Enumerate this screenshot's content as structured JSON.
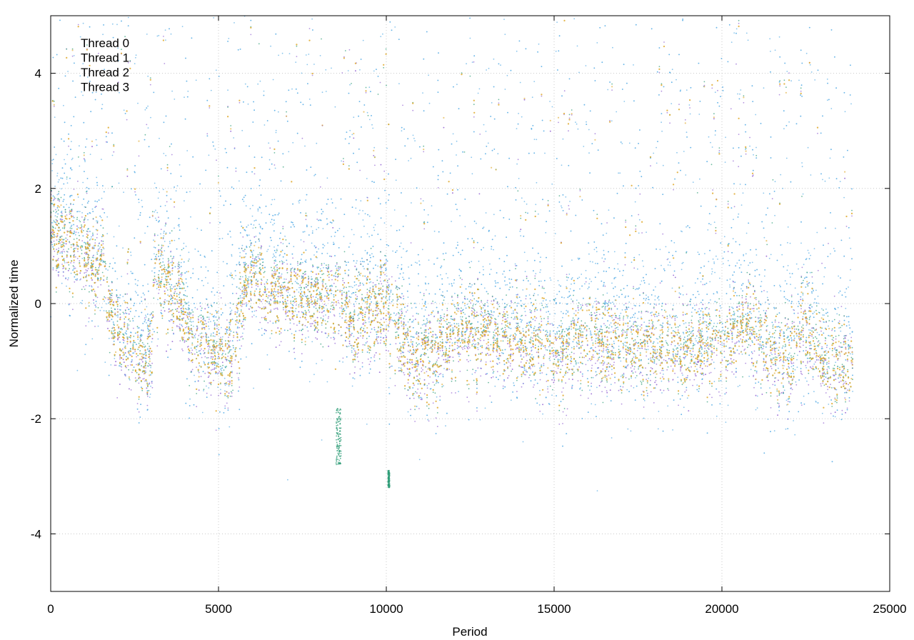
{
  "chart_data": {
    "type": "scatter",
    "title": "",
    "xlabel": "Period",
    "ylabel": "Normalized time",
    "xlim": [
      0,
      25000
    ],
    "ylim": [
      -5,
      5
    ],
    "xticks": [
      0,
      5000,
      10000,
      15000,
      20000,
      25000
    ],
    "yticks": [
      -4,
      -2,
      0,
      2,
      4
    ],
    "xtick_labels": [
      "0",
      "5000",
      "10000",
      "15000",
      "20000",
      "25000"
    ],
    "ytick_labels": [
      "-4",
      "-2",
      "0",
      "2",
      "4"
    ],
    "grid": true,
    "legend_position": "top-left",
    "series": [
      {
        "name": "Thread 0",
        "color": "#9b6fd6"
      },
      {
        "name": "Thread 1",
        "color": "#2f9e78"
      },
      {
        "name": "Thread 2",
        "color": "#5aaee6"
      },
      {
        "name": "Thread 3",
        "color": "#e0a92a"
      }
    ],
    "n_periods": 23900,
    "trend": [
      [
        0,
        1.3
      ],
      [
        1000,
        0.9
      ],
      [
        1600,
        0.6
      ],
      [
        1800,
        -0.3
      ],
      [
        2500,
        -0.8
      ],
      [
        3000,
        -0.9
      ],
      [
        3100,
        0.6
      ],
      [
        3800,
        0.2
      ],
      [
        4200,
        -0.5
      ],
      [
        4700,
        -0.7
      ],
      [
        5300,
        -1.0
      ],
      [
        5800,
        0.4
      ],
      [
        6500,
        0.3
      ],
      [
        7500,
        0.1
      ],
      [
        8500,
        0.1
      ],
      [
        9000,
        -0.3
      ],
      [
        9800,
        0.1
      ],
      [
        10400,
        -0.5
      ],
      [
        10800,
        -1.0
      ],
      [
        11500,
        -0.8
      ],
      [
        12200,
        -0.4
      ],
      [
        13000,
        -0.6
      ],
      [
        14000,
        -0.6
      ],
      [
        15000,
        -0.8
      ],
      [
        16000,
        -0.5
      ],
      [
        17000,
        -0.8
      ],
      [
        18000,
        -0.7
      ],
      [
        19000,
        -0.8
      ],
      [
        20000,
        -0.6
      ],
      [
        20800,
        -0.3
      ],
      [
        21500,
        -0.8
      ],
      [
        22000,
        -1.0
      ],
      [
        22500,
        -0.3
      ],
      [
        23000,
        -1.0
      ],
      [
        23800,
        -1.0
      ]
    ],
    "clusters": [
      {
        "series": "Thread 1",
        "x": [
          8500,
          8650
        ],
        "y": [
          -2.8,
          -1.8
        ]
      },
      {
        "series": "Thread 1",
        "x": [
          10050,
          10100
        ],
        "y": [
          -3.2,
          -2.9
        ]
      }
    ]
  }
}
